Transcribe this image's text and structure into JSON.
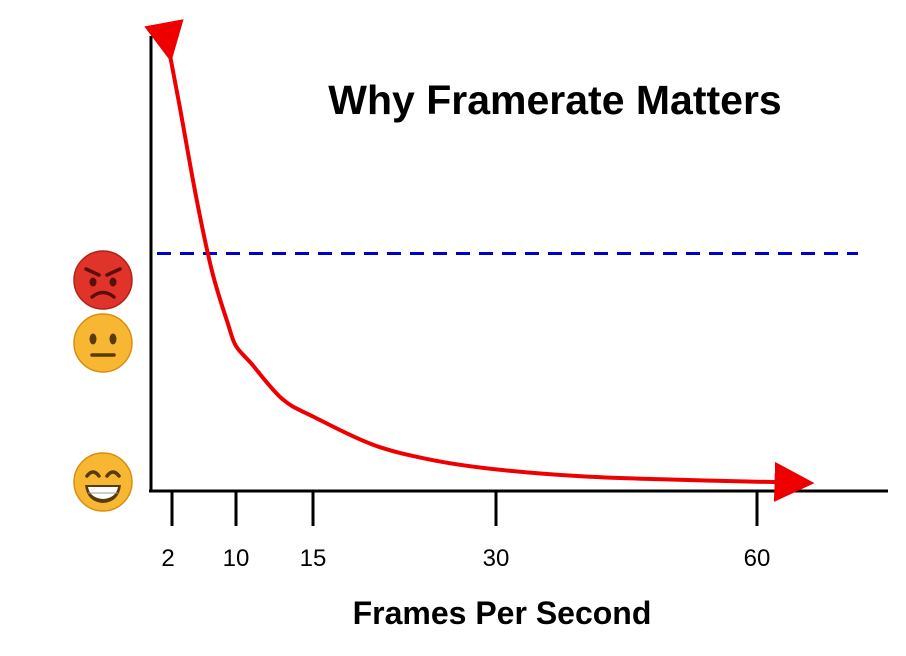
{
  "chart_data": {
    "type": "line",
    "title": "Why Framerate Matters",
    "xlabel": "Frames Per Second",
    "ylabel": "",
    "x_ticks": [
      2,
      10,
      15,
      30,
      60
    ],
    "y_axis_icons": [
      {
        "name": "angry-face-icon",
        "level": 0.66
      },
      {
        "name": "neutral-face-icon",
        "level": 0.53
      },
      {
        "name": "grinning-face-icon",
        "level": 0.0
      }
    ],
    "series": [
      {
        "color": "#ee0000",
        "style": "solid-arrowed",
        "x": [
          1.5,
          3,
          5,
          7,
          9,
          10,
          11,
          13,
          15,
          20,
          25,
          30,
          40,
          50,
          60,
          65
        ],
        "y": [
          1.0,
          0.86,
          0.66,
          0.49,
          0.37,
          0.32,
          0.28,
          0.2,
          0.16,
          0.095,
          0.06,
          0.04,
          0.024,
          0.017,
          0.012,
          0.01
        ]
      }
    ],
    "threshold_line": {
      "y": 0.53,
      "color": "#0000cc",
      "style": "dashed"
    },
    "xlim": [
      0,
      70
    ],
    "ylim": [
      0,
      1.06
    ],
    "grid": false,
    "legend": "none"
  }
}
